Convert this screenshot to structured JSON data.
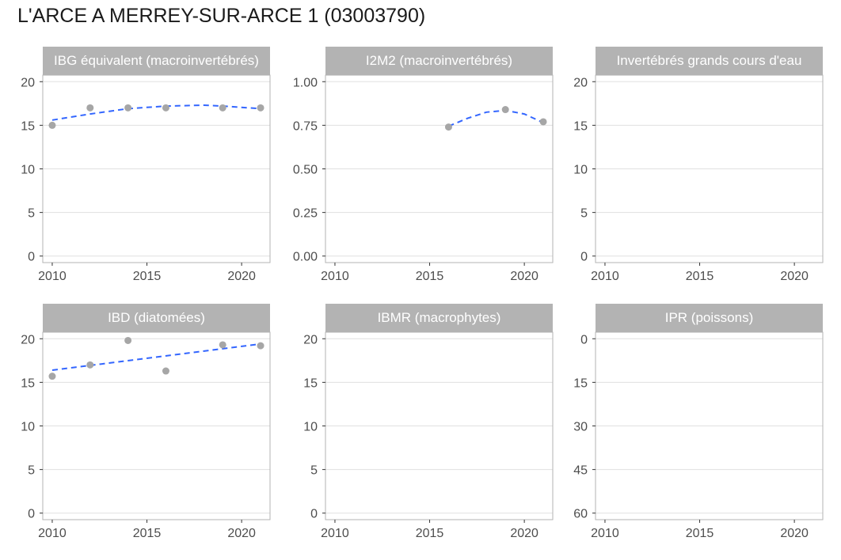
{
  "title": "L'ARCE A MERREY-SUR-ARCE 1 (03003790)",
  "colors": {
    "strip": "#b3b3b3",
    "strip_text": "#ffffff",
    "grid": "#e0e0e0",
    "border": "#b3b3b3",
    "point": "#a6a6a6",
    "trend": "#3366ff",
    "tick_text": "#4d4d4d"
  },
  "chart_data": [
    {
      "type": "scatter",
      "title": "IBG équivalent (macroinvertébrés)",
      "xlim": [
        2009.5,
        2021.5
      ],
      "ylim": [
        -0.75,
        20.75
      ],
      "x_ticks": [
        2010,
        2015,
        2020
      ],
      "x_tick_labels": [
        "2010",
        "2015",
        "2020"
      ],
      "y_ticks": [
        0,
        5,
        10,
        15,
        20
      ],
      "y_tick_labels": [
        "0",
        "5",
        "10",
        "15",
        "20"
      ],
      "reverse_y": false,
      "points": [
        {
          "x": 2010,
          "y": 15
        },
        {
          "x": 2012,
          "y": 17
        },
        {
          "x": 2014,
          "y": 17
        },
        {
          "x": 2016,
          "y": 17
        },
        {
          "x": 2019,
          "y": 17
        },
        {
          "x": 2021,
          "y": 17
        }
      ],
      "trend": [
        {
          "x": 2010,
          "y": 15.6
        },
        {
          "x": 2012,
          "y": 16.3
        },
        {
          "x": 2014,
          "y": 16.9
        },
        {
          "x": 2016,
          "y": 17.2
        },
        {
          "x": 2018,
          "y": 17.3
        },
        {
          "x": 2019,
          "y": 17.2
        },
        {
          "x": 2021,
          "y": 16.9
        }
      ]
    },
    {
      "type": "scatter",
      "title": "I2M2 (macroinvertébrés)",
      "xlim": [
        2009.5,
        2021.5
      ],
      "ylim": [
        -0.0375,
        1.0375
      ],
      "x_ticks": [
        2010,
        2015,
        2020
      ],
      "x_tick_labels": [
        "2010",
        "2015",
        "2020"
      ],
      "y_ticks": [
        0,
        0.25,
        0.5,
        0.75,
        1.0
      ],
      "y_tick_labels": [
        "0.00",
        "0.25",
        "0.50",
        "0.75",
        "1.00"
      ],
      "reverse_y": false,
      "points": [
        {
          "x": 2016,
          "y": 0.74
        },
        {
          "x": 2019,
          "y": 0.84
        },
        {
          "x": 2021,
          "y": 0.77
        }
      ],
      "trend": [
        {
          "x": 2016,
          "y": 0.745
        },
        {
          "x": 2017,
          "y": 0.79
        },
        {
          "x": 2018,
          "y": 0.825
        },
        {
          "x": 2019,
          "y": 0.835
        },
        {
          "x": 2020,
          "y": 0.815
        },
        {
          "x": 2021,
          "y": 0.765
        }
      ]
    },
    {
      "type": "scatter",
      "title": "Invertébrés grands cours d'eau",
      "xlim": [
        2009.5,
        2021.5
      ],
      "ylim": [
        -0.75,
        20.75
      ],
      "x_ticks": [
        2010,
        2015,
        2020
      ],
      "x_tick_labels": [
        "2010",
        "2015",
        "2020"
      ],
      "y_ticks": [
        0,
        5,
        10,
        15,
        20
      ],
      "y_tick_labels": [
        "0",
        "5",
        "10",
        "15",
        "20"
      ],
      "reverse_y": false,
      "points": [],
      "trend": []
    },
    {
      "type": "scatter",
      "title": "IBD (diatomées)",
      "xlim": [
        2009.5,
        2021.5
      ],
      "ylim": [
        -0.75,
        20.75
      ],
      "x_ticks": [
        2010,
        2015,
        2020
      ],
      "x_tick_labels": [
        "2010",
        "2015",
        "2020"
      ],
      "y_ticks": [
        0,
        5,
        10,
        15,
        20
      ],
      "y_tick_labels": [
        "0",
        "5",
        "10",
        "15",
        "20"
      ],
      "reverse_y": false,
      "points": [
        {
          "x": 2010,
          "y": 15.7
        },
        {
          "x": 2012,
          "y": 17.0
        },
        {
          "x": 2014,
          "y": 19.8
        },
        {
          "x": 2016,
          "y": 16.3
        },
        {
          "x": 2019,
          "y": 19.3
        },
        {
          "x": 2021,
          "y": 19.2
        }
      ],
      "trend": [
        {
          "x": 2010,
          "y": 16.4
        },
        {
          "x": 2021,
          "y": 19.4
        }
      ]
    },
    {
      "type": "scatter",
      "title": "IBMR (macrophytes)",
      "xlim": [
        2009.5,
        2021.5
      ],
      "ylim": [
        -0.75,
        20.75
      ],
      "x_ticks": [
        2010,
        2015,
        2020
      ],
      "x_tick_labels": [
        "2010",
        "2015",
        "2020"
      ],
      "y_ticks": [
        0,
        5,
        10,
        15,
        20
      ],
      "y_tick_labels": [
        "0",
        "5",
        "10",
        "15",
        "20"
      ],
      "reverse_y": false,
      "points": [],
      "trend": []
    },
    {
      "type": "scatter",
      "title": "IPR (poissons)",
      "xlim": [
        2009.5,
        2021.5
      ],
      "ylim": [
        -2.25,
        62.25
      ],
      "x_ticks": [
        2010,
        2015,
        2020
      ],
      "x_tick_labels": [
        "2010",
        "2015",
        "2020"
      ],
      "y_ticks": [
        0,
        15,
        30,
        45,
        60
      ],
      "y_tick_labels": [
        "0",
        "15",
        "30",
        "45",
        "60"
      ],
      "reverse_y": true,
      "points": [],
      "trend": []
    }
  ]
}
